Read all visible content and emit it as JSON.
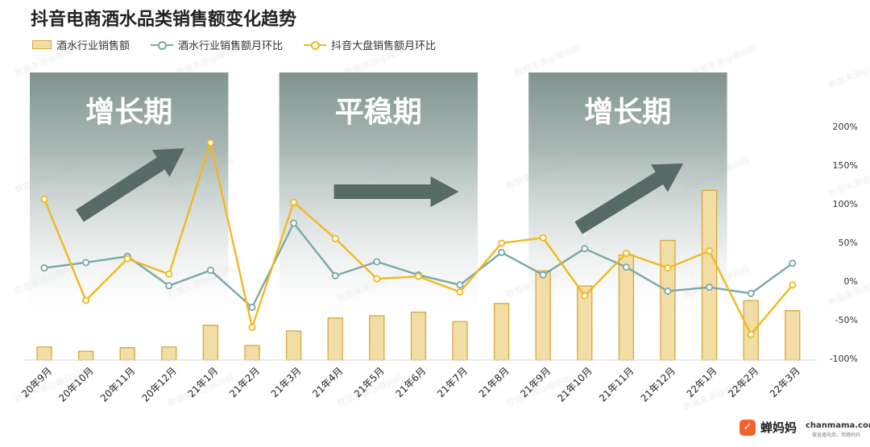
{
  "title": "抖音电商酒水品类销售额变化趋势",
  "legend": {
    "bar": "酒水行业销售额",
    "line_industry": "酒水行业销售额月环比",
    "line_platform": "抖音大盘销售额月环比"
  },
  "phases": [
    {
      "label": "增长期",
      "start": "20年9月",
      "end": "21年1月",
      "trend": "up"
    },
    {
      "label": "平稳期",
      "start": "21年3月",
      "end": "21年7月",
      "trend": "flat"
    },
    {
      "label": "增长期",
      "start": "21年9月",
      "end": "22年1月",
      "trend": "up"
    }
  ],
  "watermark": "数据来源@蝉妈妈",
  "brand": {
    "logo_text": "蝉妈妈",
    "site": "chanmama.com",
    "slogan": "做直播电商，用蝉妈妈"
  },
  "colors": {
    "bar_fill": "#f2dda6",
    "bar_stroke": "#d6a83a",
    "industry_line": "#7aa8a8",
    "platform_line": "#f2b81f",
    "phase_top": "#7f938f",
    "arrow": "#566a66"
  },
  "chart_data": {
    "type": "bar",
    "title": "抖音电商酒水品类销售额变化趋势",
    "categories": [
      "20年9月",
      "20年10月",
      "20年11月",
      "20年12月",
      "21年1月",
      "21年2月",
      "21年3月",
      "21年4月",
      "21年5月",
      "21年6月",
      "21年7月",
      "21年8月",
      "21年9月",
      "21年10月",
      "21年11月",
      "21年12月",
      "22年1月",
      "22年2月",
      "22年3月"
    ],
    "series": [
      {
        "name": "酒水行业销售额",
        "type": "bar",
        "values": [
          1.8,
          1.2,
          1.7,
          1.8,
          4.8,
          2.0,
          4.0,
          5.8,
          6.1,
          6.6,
          5.3,
          7.8,
          12.3,
          10.2,
          14.5,
          16.5,
          23.4,
          8.2,
          6.8
        ]
      },
      {
        "name": "酒水行业销售额月环比",
        "type": "line",
        "axis": "right",
        "values": [
          17,
          24,
          32,
          -6,
          14,
          -34,
          75,
          7,
          25,
          8,
          -5,
          37,
          8,
          42,
          18,
          -13,
          -8,
          -16,
          23
        ]
      },
      {
        "name": "抖音大盘销售额月环比",
        "type": "line",
        "axis": "right",
        "values": [
          106,
          -25,
          29,
          9,
          179,
          -60,
          102,
          55,
          3,
          6,
          -14,
          49,
          56,
          -19,
          36,
          17,
          39,
          -69,
          -5
        ]
      }
    ],
    "y_right": {
      "ticks": [
        "200%",
        "150%",
        "100%",
        "50%",
        "0%",
        "-50%",
        "-100%"
      ],
      "range": [
        -100,
        200
      ]
    },
    "grid": false,
    "legend_position": "top-left"
  }
}
